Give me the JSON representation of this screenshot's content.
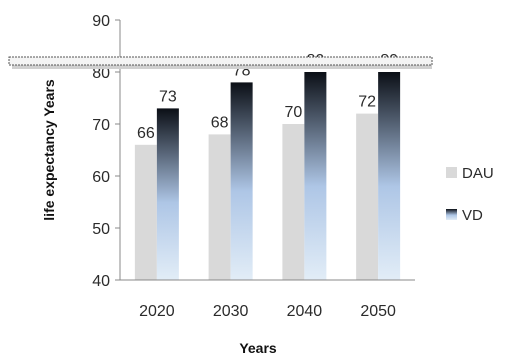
{
  "chart_data": {
    "type": "bar",
    "categories": [
      "2020",
      "2030",
      "2040",
      "2050"
    ],
    "series": [
      {
        "name": "DAU",
        "values": [
          66,
          68,
          70,
          72
        ]
      },
      {
        "name": "VD",
        "values": [
          73,
          78,
          80,
          80
        ]
      }
    ],
    "xlabel": "Years",
    "ylabel": "life expectancy Years",
    "ylim": [
      40,
      90
    ],
    "yticks": [
      40,
      50,
      60,
      70,
      80,
      90
    ],
    "grid": false,
    "legend_position": "right",
    "colors": {
      "DAU": "#d9d9d9",
      "VD_top": "#0b0f16",
      "VD_mid": "#aec6e6",
      "VD_bottom": "#e2edf7",
      "axis": "#888888",
      "overlay_bar": "#444444"
    }
  }
}
